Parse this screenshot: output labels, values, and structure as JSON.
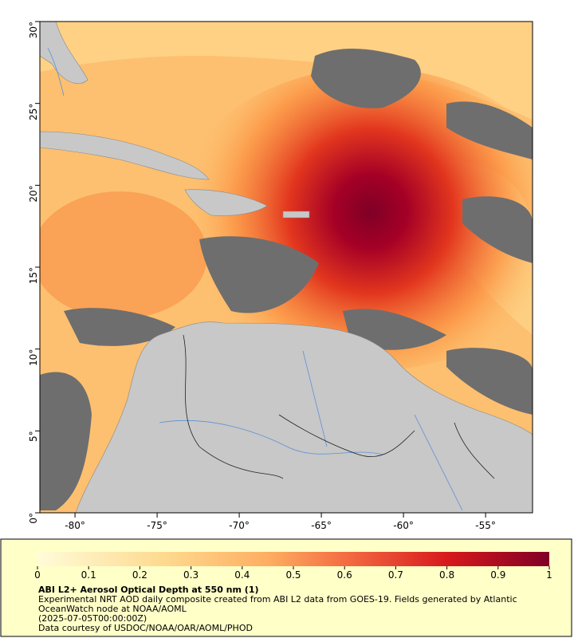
{
  "map": {
    "xlim": [
      -82.14,
      -52.14
    ],
    "ylim": [
      0,
      30
    ],
    "xticks": [
      {
        "value": -80,
        "label": "-80°"
      },
      {
        "value": -75,
        "label": "-75°"
      },
      {
        "value": -70,
        "label": "-70°"
      },
      {
        "value": -65,
        "label": "-65°"
      },
      {
        "value": -60,
        "label": "-60°"
      },
      {
        "value": -55,
        "label": "-55°"
      }
    ],
    "yticks": [
      {
        "value": 0,
        "label": "0°"
      },
      {
        "value": 5,
        "label": "5°"
      },
      {
        "value": 10,
        "label": "10°"
      },
      {
        "value": 15,
        "label": "15°"
      },
      {
        "value": 20,
        "label": "20°"
      },
      {
        "value": 25,
        "label": "25°"
      },
      {
        "value": 30,
        "label": "30°"
      }
    ]
  },
  "colorbar": {
    "range": [
      0,
      1
    ],
    "ticks": [
      0,
      0.1,
      0.2,
      0.3,
      0.4,
      0.5,
      0.6,
      0.7,
      0.8,
      0.9,
      1
    ]
  },
  "caption": {
    "title": "ABI L2+ Aerosol Optical Depth at 550 nm (1)",
    "description": "Experimental NRT AOD daily composite created from ABI L2 data from GOES-19. Fields generated by Atlantic OceanWatch node at NOAA/AOML",
    "time": "(2025-07-05T00:00:00Z)",
    "credit": "Data courtesy of USDOC/NOAA/OAR/AOML/PHOD"
  }
}
